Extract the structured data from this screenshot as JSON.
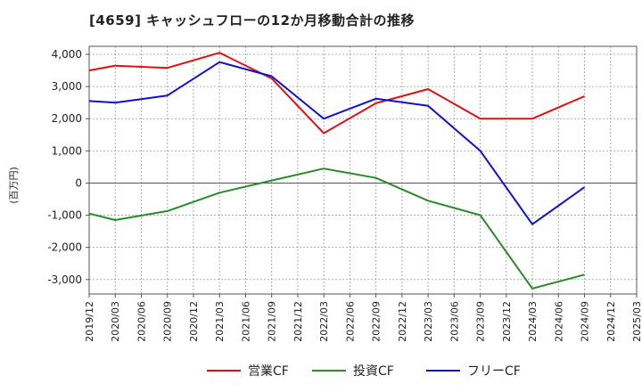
{
  "chart_data": {
    "type": "line",
    "title": "[4659]  キャッシュフローの12か月移動合計の推移",
    "ylabel": "(百万円)",
    "xlabel": "",
    "ylim": [
      -3450,
      4250
    ],
    "yticks": [
      4000,
      3000,
      2000,
      1000,
      0,
      -1000,
      -2000,
      -3000
    ],
    "ytick_labels": [
      "4,000",
      "3,000",
      "2,000",
      "1,000",
      "0",
      "-1,000",
      "-2,000",
      "-3,000"
    ],
    "categories": [
      "2019/12",
      "2020/03",
      "2020/06",
      "2020/09",
      "2020/12",
      "2021/03",
      "2021/06",
      "2021/09",
      "2021/12",
      "2022/03",
      "2022/06",
      "2022/09",
      "2022/12",
      "2023/03",
      "2023/06",
      "2023/09",
      "2023/12",
      "2024/03",
      "2024/06",
      "2024/09",
      "2024/12",
      "2025/03"
    ],
    "series": [
      {
        "name": "営業CF",
        "color": "#dd1111",
        "points": [
          [
            0,
            3500
          ],
          [
            1,
            3650
          ],
          [
            3,
            3580
          ],
          [
            5,
            4050
          ],
          [
            7,
            3250
          ],
          [
            9,
            1550
          ],
          [
            11,
            2480
          ],
          [
            13,
            2920
          ],
          [
            15,
            2000
          ],
          [
            17,
            2000
          ],
          [
            19,
            2700
          ]
        ]
      },
      {
        "name": "投資CF",
        "color": "#2a8a2a",
        "points": [
          [
            0,
            -950
          ],
          [
            1,
            -1150
          ],
          [
            3,
            -870
          ],
          [
            5,
            -300
          ],
          [
            7,
            80
          ],
          [
            9,
            450
          ],
          [
            11,
            160
          ],
          [
            13,
            -550
          ],
          [
            15,
            -1000
          ],
          [
            17,
            -3280
          ],
          [
            19,
            -2850
          ]
        ]
      },
      {
        "name": "フリーCF",
        "color": "#1111cc",
        "points": [
          [
            0,
            2550
          ],
          [
            1,
            2500
          ],
          [
            3,
            2720
          ],
          [
            5,
            3760
          ],
          [
            7,
            3320
          ],
          [
            9,
            2000
          ],
          [
            11,
            2620
          ],
          [
            13,
            2400
          ],
          [
            15,
            1000
          ],
          [
            17,
            -1280
          ],
          [
            19,
            -130
          ]
        ]
      }
    ],
    "legend_position": "bottom",
    "grid": true
  }
}
